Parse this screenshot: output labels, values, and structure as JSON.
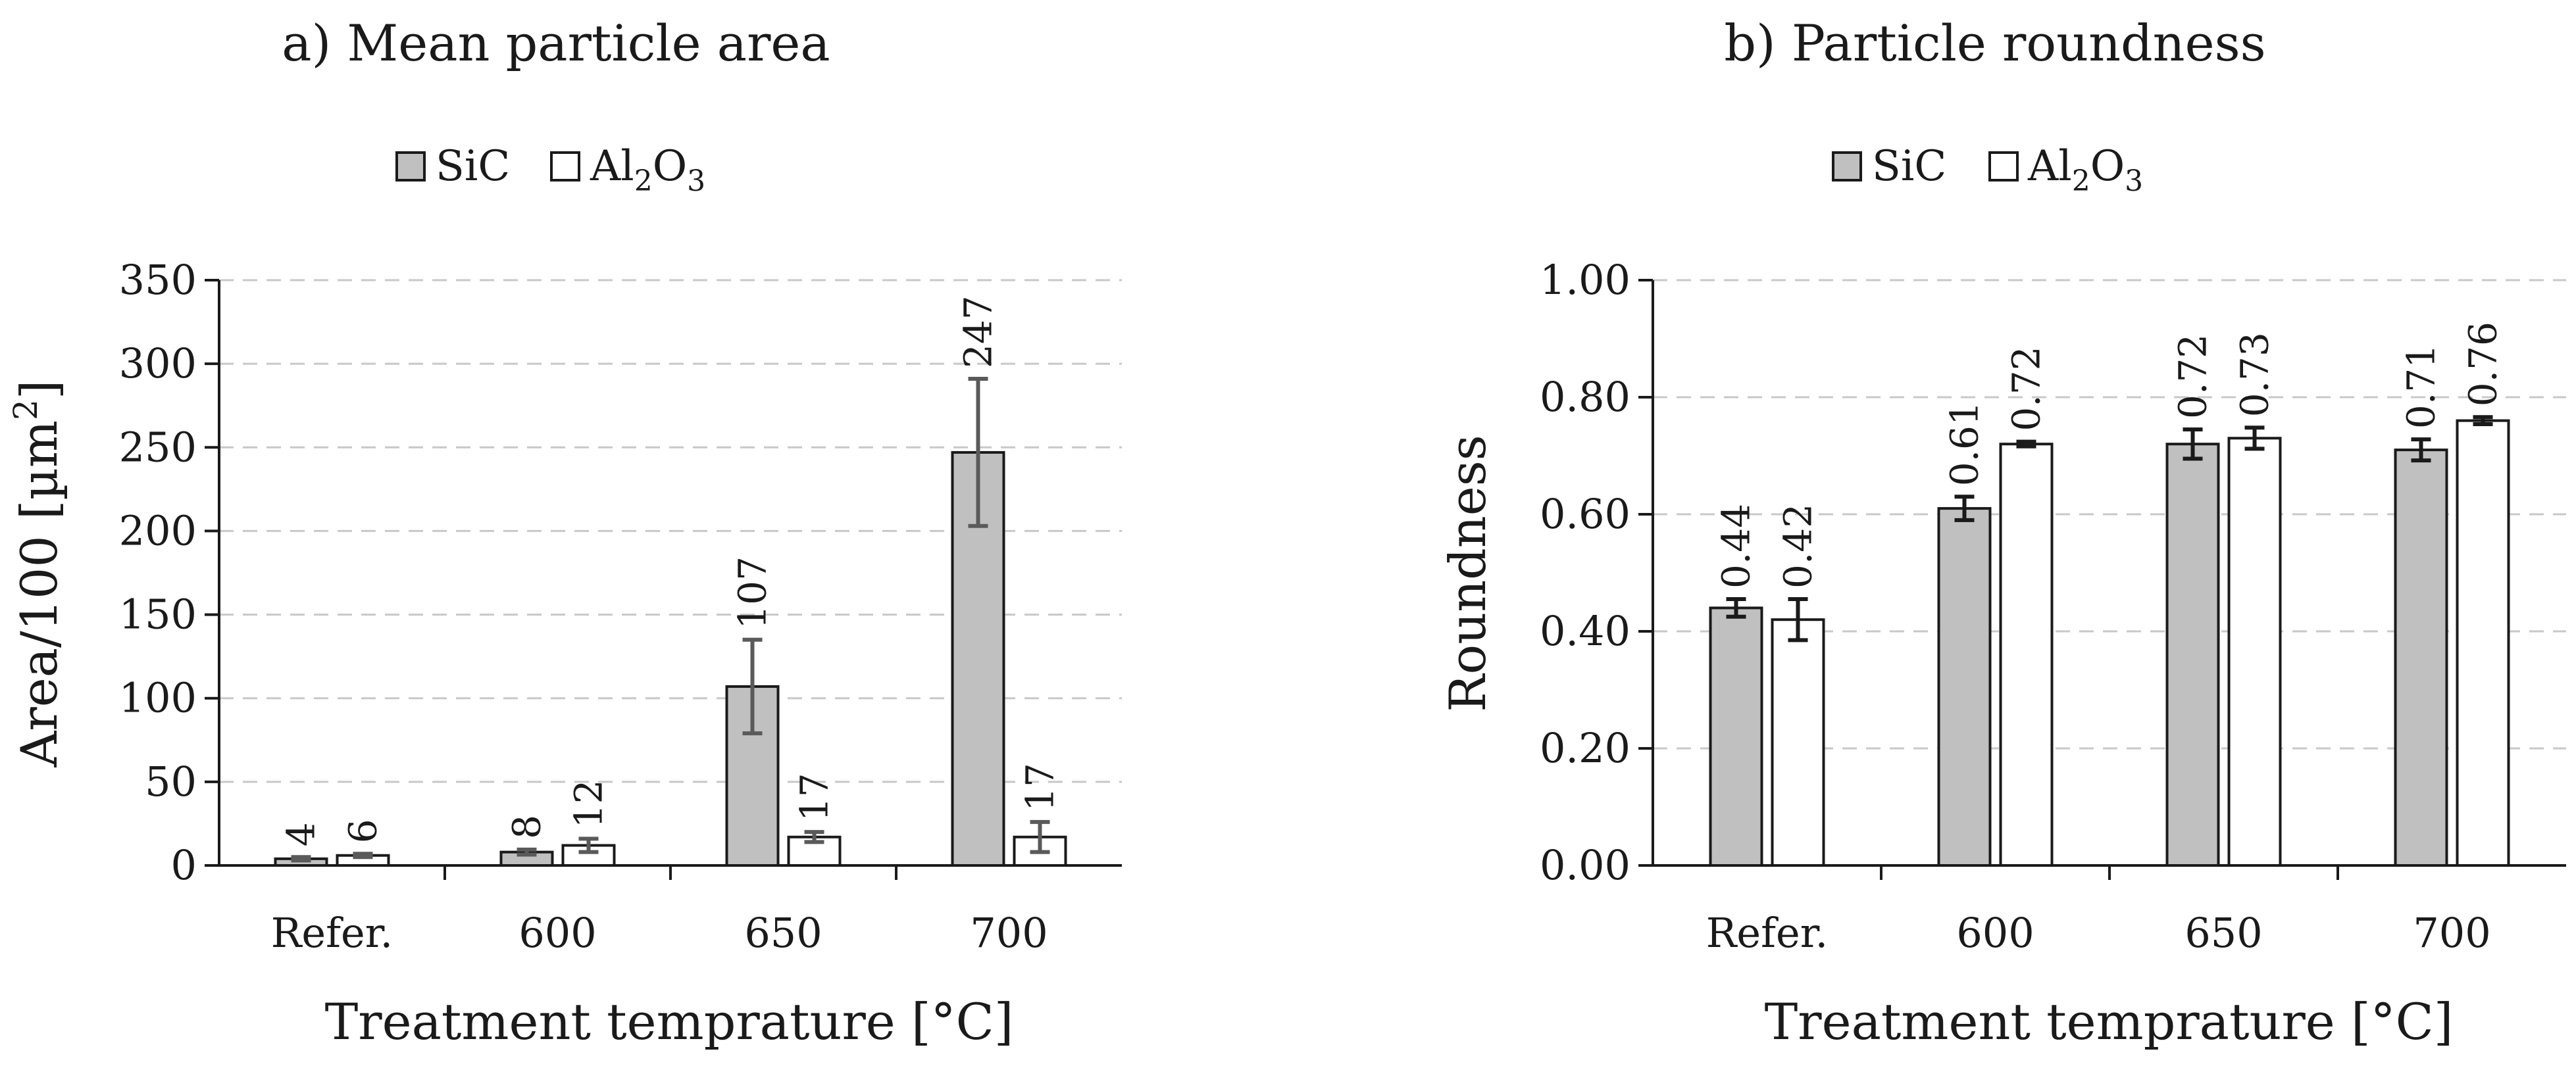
{
  "chart_data": [
    {
      "type": "bar",
      "title": "a) Mean particle area",
      "xlabel": "Treatment temprature [°C]",
      "ylabel_main": "Area/100 [µm",
      "ylabel_sup": "2",
      "ylabel_close": "]",
      "ylim": [
        0,
        350
      ],
      "yticks": [
        0,
        50,
        100,
        150,
        200,
        250,
        300,
        350
      ],
      "ytick_labels": [
        "0",
        "50",
        "100",
        "150",
        "200",
        "250",
        "300",
        "350"
      ],
      "categories": [
        "Refer.",
        "600",
        "650",
        "700"
      ],
      "legend_position": "top-center",
      "error_color": "#5a5a5a",
      "series": [
        {
          "name": "SiC",
          "fill": "#c0c0c0",
          "values": [
            4,
            8,
            107,
            247
          ],
          "errors": [
            1,
            1.5,
            28,
            44
          ],
          "labels": [
            "4",
            "8",
            "107",
            "247"
          ]
        },
        {
          "name": "Al2O3",
          "fill": "#ffffff",
          "values": [
            6,
            12,
            17,
            17
          ],
          "errors": [
            1,
            4,
            3,
            9
          ],
          "labels": [
            "6",
            "12",
            "17",
            "17"
          ]
        }
      ]
    },
    {
      "type": "bar",
      "title": "b) Particle roundness",
      "xlabel": "Treatment temprature [°C]",
      "ylabel_main": "Roundness",
      "ylabel_sup": "",
      "ylabel_close": "",
      "ylim": [
        0,
        1.0
      ],
      "yticks": [
        0,
        0.2,
        0.4,
        0.6,
        0.8,
        1.0
      ],
      "ytick_labels": [
        "0.00",
        "0.20",
        "0.40",
        "0.60",
        "0.80",
        "1.00"
      ],
      "categories": [
        "Refer.",
        "600",
        "650",
        "700"
      ],
      "legend_position": "top-center",
      "error_color": "#1a1a1a",
      "series": [
        {
          "name": "SiC",
          "fill": "#c0c0c0",
          "values": [
            0.44,
            0.61,
            0.72,
            0.71
          ],
          "errors": [
            0.015,
            0.02,
            0.025,
            0.018
          ],
          "labels": [
            "0.44",
            "0.61",
            "0.72",
            "0.71"
          ]
        },
        {
          "name": "Al2O3",
          "fill": "#ffffff",
          "values": [
            0.42,
            0.72,
            0.73,
            0.76
          ],
          "errors": [
            0.035,
            0.004,
            0.018,
            0.006
          ],
          "labels": [
            "0.42",
            "0.72",
            "0.73",
            "0.76"
          ]
        }
      ]
    }
  ],
  "legend": {
    "sic": "SiC",
    "al_main": "Al",
    "al_sub1": "2",
    "al_mid": "O",
    "al_sub2": "3"
  }
}
